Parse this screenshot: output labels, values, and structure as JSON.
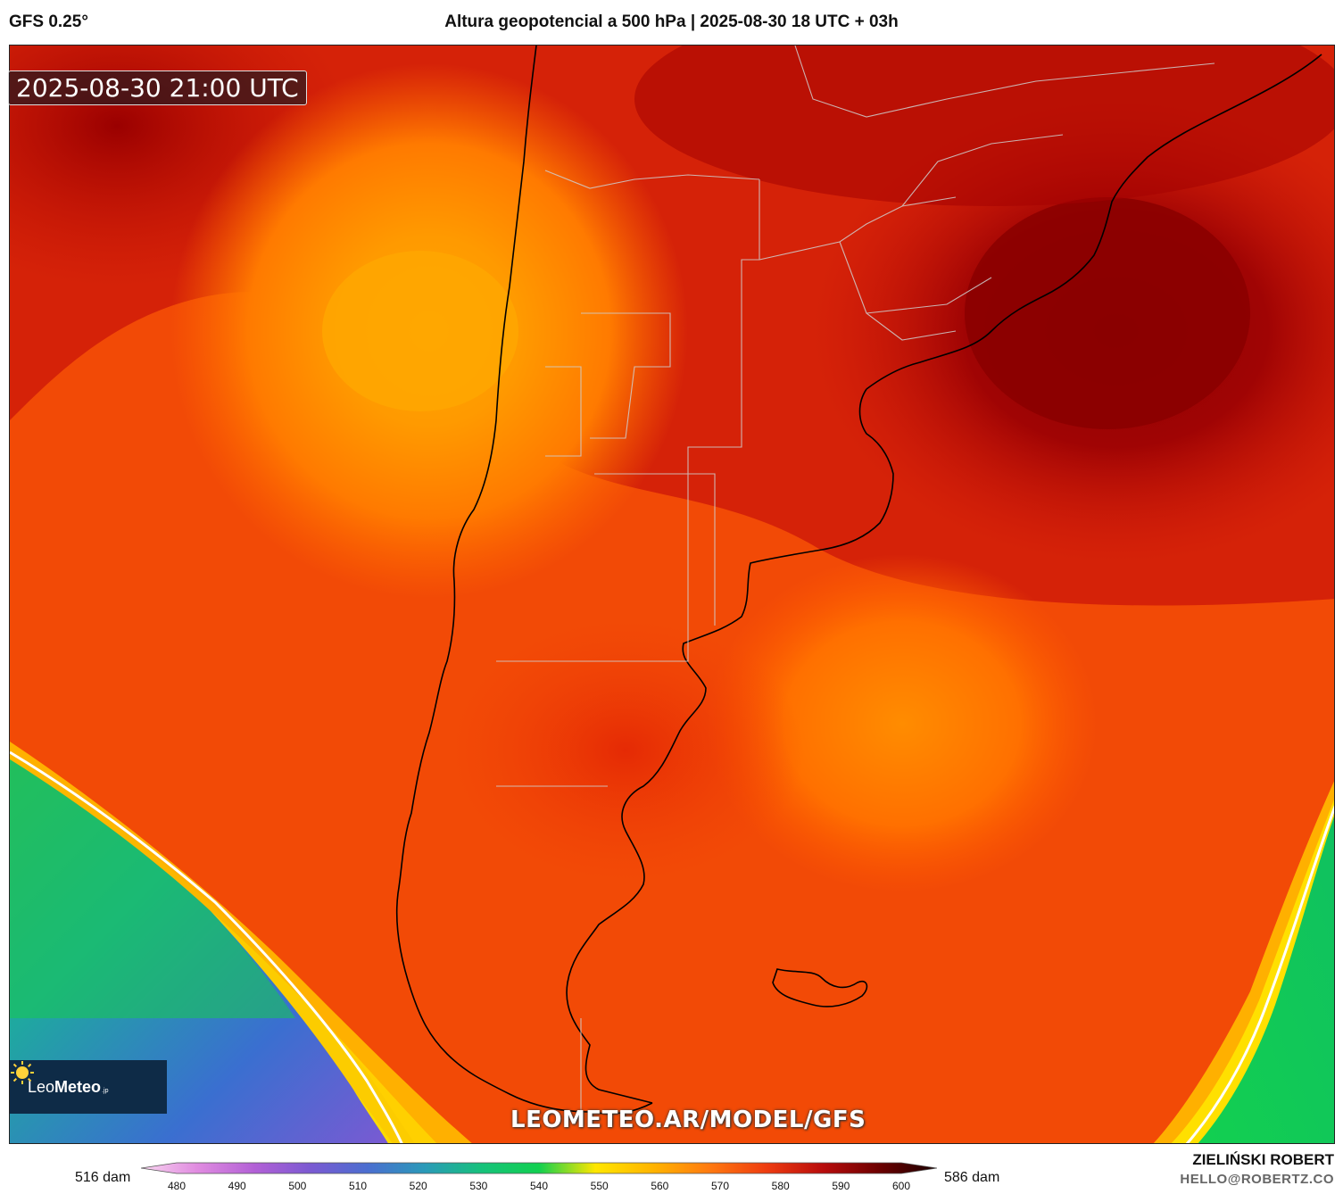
{
  "header": {
    "model": "GFS 0.25°",
    "title": "Altura geopotencial a 500 hPa | 2025-08-30 18 UTC + 03h"
  },
  "map": {
    "valid_time": "2025-08-30 21:00 UTC",
    "watermark": "LEOMETEO.AR/MODEL/GFS",
    "logo": {
      "name_light": "Leo",
      "name_bold": "Meteo",
      "suffix": ".jp",
      "icon": "sun-icon"
    },
    "field": "geopotential height 500 hPa"
  },
  "colorbar": {
    "min_label": "516 dam",
    "max_label": "586 dam",
    "ticks": [
      "480",
      "490",
      "500",
      "510",
      "520",
      "530",
      "540",
      "550",
      "560",
      "570",
      "580",
      "590",
      "600"
    ],
    "colors": [
      "#f9d6f0",
      "#e08be0",
      "#b260d6",
      "#7a5ad2",
      "#4a6fd0",
      "#2a9ab8",
      "#16c27a",
      "#12d050",
      "#ffe600",
      "#ffb400",
      "#ff7a10",
      "#ee3c10",
      "#b80c0c",
      "#6a0000",
      "#1a0000"
    ]
  },
  "credits": {
    "author": "ZIELIŃSKI ROBERT",
    "email": "HELLO@ROBERTZ.CO"
  }
}
